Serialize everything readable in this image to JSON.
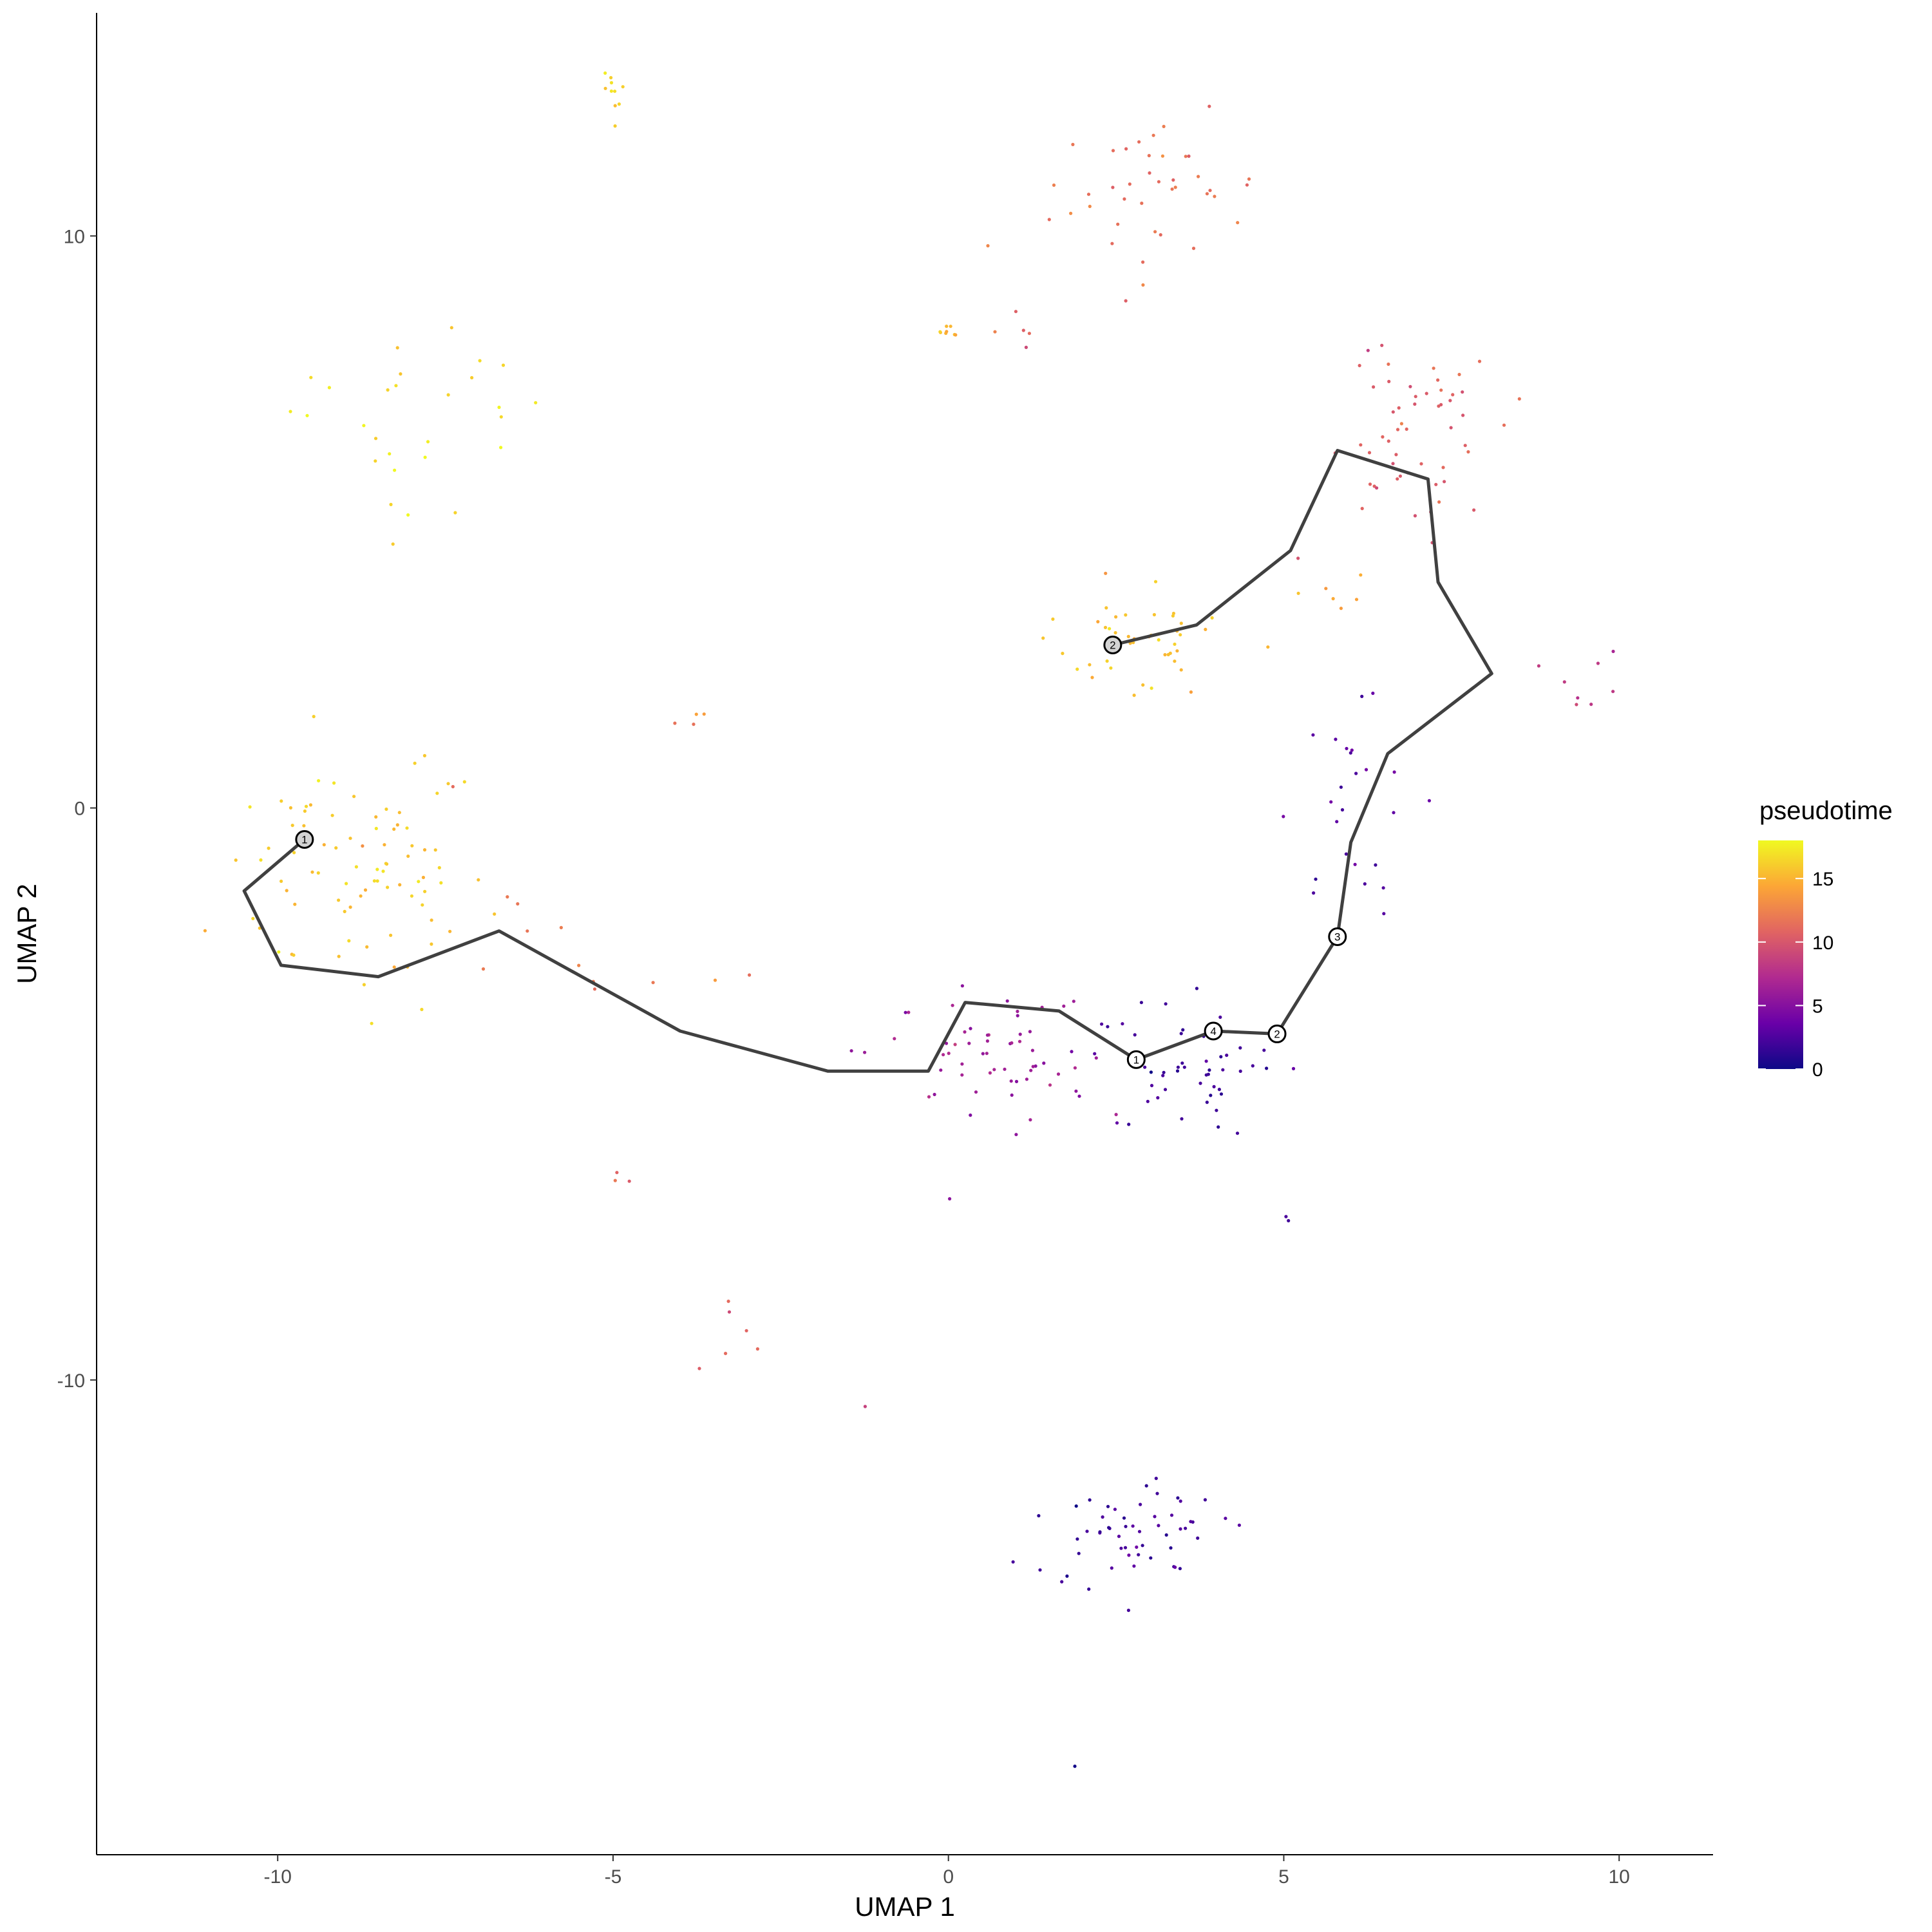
{
  "chart_data": {
    "type": "scatter",
    "xlabel": "UMAP 1",
    "ylabel": "UMAP 2",
    "xlim": [
      -12.7,
      11.4
    ],
    "ylim": [
      -18.3,
      13.9
    ],
    "x_ticks": [
      -10,
      -5,
      0,
      5,
      10
    ],
    "y_ticks": [
      -10,
      0,
      10
    ],
    "grid": false,
    "legend": {
      "title": "pseudotime",
      "position": "right",
      "range": [
        0,
        18
      ],
      "ticks": [
        0,
        5,
        10,
        15
      ],
      "colors": [
        "#0d0887",
        "#6a00a8",
        "#b12a90",
        "#e16462",
        "#fca636",
        "#f0f921"
      ]
    },
    "trajectory_color": "#404040",
    "trajectory": [
      {
        "path": [
          [
            -9.6,
            -0.55
          ],
          [
            -10.5,
            -1.45
          ],
          [
            -9.95,
            -2.75
          ],
          [
            -8.5,
            -2.95
          ],
          [
            -6.7,
            -2.15
          ],
          [
            -4.0,
            -3.9
          ],
          [
            -1.8,
            -4.6
          ],
          [
            -0.3,
            -4.6
          ],
          [
            0.25,
            -3.4
          ],
          [
            1.65,
            -3.55
          ],
          [
            2.8,
            -4.4
          ],
          [
            3.95,
            -3.9
          ],
          [
            4.9,
            -3.95
          ],
          [
            5.8,
            -2.25
          ],
          [
            6.0,
            -0.6
          ],
          [
            6.55,
            0.95
          ],
          [
            8.1,
            2.35
          ],
          [
            7.3,
            3.95
          ],
          [
            7.15,
            5.75
          ],
          [
            5.8,
            6.25
          ],
          [
            5.1,
            4.5
          ],
          [
            3.7,
            3.2
          ],
          [
            2.45,
            2.85
          ]
        ]
      }
    ],
    "nodes": [
      {
        "label": "1",
        "x": -9.6,
        "y": -0.55,
        "type": "root"
      },
      {
        "label": "2",
        "x": 2.45,
        "y": 2.85,
        "type": "root"
      },
      {
        "label": "1",
        "x": 2.8,
        "y": -4.4,
        "type": "branch"
      },
      {
        "label": "4",
        "x": 3.95,
        "y": -3.9,
        "type": "branch"
      },
      {
        "label": "2",
        "x": 4.9,
        "y": -3.95,
        "type": "branch"
      },
      {
        "label": "3",
        "x": 5.8,
        "y": -2.25,
        "type": "branch"
      }
    ],
    "clusters": [
      {
        "cx": -5.0,
        "cy": 12.5,
        "sx": 0.15,
        "sy": 0.4,
        "n": 10,
        "pt": 16.5
      },
      {
        "cx": -8.0,
        "cy": 7.0,
        "sx": 1.3,
        "sy": 1.3,
        "n": 28,
        "pt": 17.0
      },
      {
        "cx": -8.8,
        "cy": -1.2,
        "sx": 1.5,
        "sy": 1.6,
        "n": 85,
        "pt": 16.0
      },
      {
        "cx": -6.5,
        "cy": -1.2,
        "sx": 0.6,
        "sy": 1.0,
        "n": 6,
        "pt": 11.5
      },
      {
        "cx": -3.8,
        "cy": 1.5,
        "sx": 0.2,
        "sy": 0.25,
        "n": 4,
        "pt": 12.0
      },
      {
        "cx": -4.0,
        "cy": -3.0,
        "sx": 1.2,
        "sy": 0.3,
        "n": 6,
        "pt": 12.0
      },
      {
        "cx": -5.0,
        "cy": -6.5,
        "sx": 0.5,
        "sy": 0.1,
        "n": 3,
        "pt": 11.0
      },
      {
        "cx": -3.0,
        "cy": -9.5,
        "sx": 0.5,
        "sy": 0.6,
        "n": 6,
        "pt": 10.5
      },
      {
        "cx": -1.3,
        "cy": -10.5,
        "sx": 0.05,
        "sy": 0.05,
        "n": 1,
        "pt": 6.5
      },
      {
        "cx": 0.0,
        "cy": 8.3,
        "sx": 0.2,
        "sy": 0.2,
        "n": 8,
        "pt": 15.0
      },
      {
        "cx": 1.5,
        "cy": 8.5,
        "sx": 0.8,
        "sy": 0.3,
        "n": 6,
        "pt": 11.5
      },
      {
        "cx": 3.2,
        "cy": 10.8,
        "sx": 1.1,
        "sy": 0.9,
        "n": 40,
        "pt": 11.5
      },
      {
        "cx": 2.7,
        "cy": 3.0,
        "sx": 0.9,
        "sy": 0.7,
        "n": 45,
        "pt": 15.5
      },
      {
        "cx": 5.8,
        "cy": 3.8,
        "sx": 0.5,
        "sy": 0.3,
        "n": 6,
        "pt": 14.0
      },
      {
        "cx": 6.8,
        "cy": 6.5,
        "sx": 1.0,
        "sy": 1.2,
        "n": 55,
        "pt": 10.5
      },
      {
        "cx": 9.6,
        "cy": 2.2,
        "sx": 0.4,
        "sy": 0.4,
        "n": 8,
        "pt": 8.0
      },
      {
        "cx": 6.0,
        "cy": 0.5,
        "sx": 0.7,
        "sy": 1.5,
        "n": 25,
        "pt": 3.0
      },
      {
        "cx": 0.5,
        "cy": -4.3,
        "sx": 1.2,
        "sy": 0.9,
        "n": 60,
        "pt": 6.0
      },
      {
        "cx": 3.7,
        "cy": -4.5,
        "sx": 1.2,
        "sy": 0.9,
        "n": 50,
        "pt": 2.0
      },
      {
        "cx": 2.7,
        "cy": -12.6,
        "sx": 1.0,
        "sy": 0.7,
        "n": 55,
        "pt": 2.0
      },
      {
        "cx": 5.1,
        "cy": -7.2,
        "sx": 0.05,
        "sy": 0.05,
        "n": 2,
        "pt": 1.0
      },
      {
        "cx": 1.9,
        "cy": -16.8,
        "sx": 0.05,
        "sy": 0.05,
        "n": 1,
        "pt": 1.0
      }
    ]
  }
}
